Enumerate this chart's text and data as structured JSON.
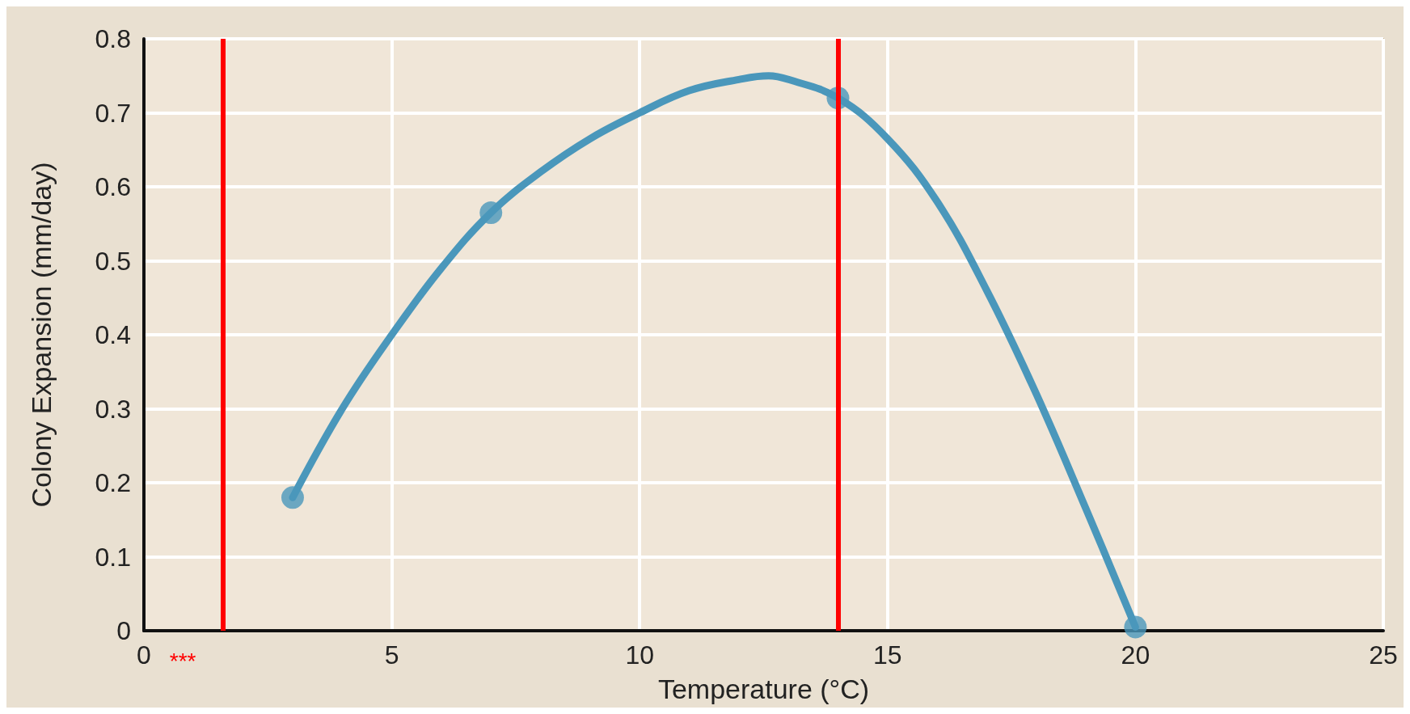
{
  "chart_data": {
    "type": "line",
    "xlabel": "Temperature (°C)",
    "ylabel": "Colony Expansion (mm/day)",
    "xlim": [
      0,
      25
    ],
    "xticks": [
      0,
      5,
      10,
      15,
      20,
      25
    ],
    "ylim": [
      0,
      0.8
    ],
    "yticks": [
      0,
      0.1,
      0.2,
      0.3,
      0.4,
      0.5,
      0.6,
      0.7,
      0.8
    ],
    "grid": true,
    "series": [
      {
        "type": "line",
        "color": "#4a97bb",
        "marker": "none",
        "x": [
          3,
          4,
          5,
          6,
          7,
          8,
          9,
          10,
          11,
          12,
          12.6,
          13,
          14,
          15,
          16,
          17,
          18,
          19,
          20
        ],
        "values": [
          0.18,
          0.3,
          0.4,
          0.49,
          0.565,
          0.62,
          0.665,
          0.7,
          0.73,
          0.745,
          0.75,
          0.745,
          0.72,
          0.665,
          0.58,
          0.46,
          0.32,
          0.165,
          0.005
        ]
      },
      {
        "type": "scatter",
        "color": "#4a97bb",
        "marker": "circle",
        "x": [
          3,
          7,
          14,
          20
        ],
        "values": [
          0.18,
          0.565,
          0.72,
          0.005
        ]
      }
    ],
    "ref_lines": [
      {
        "axis": "x",
        "value": 1.6,
        "label": "***",
        "color": "#ff0000"
      },
      {
        "axis": "x",
        "value": 14,
        "label": null,
        "color": "#ff0000"
      }
    ]
  }
}
